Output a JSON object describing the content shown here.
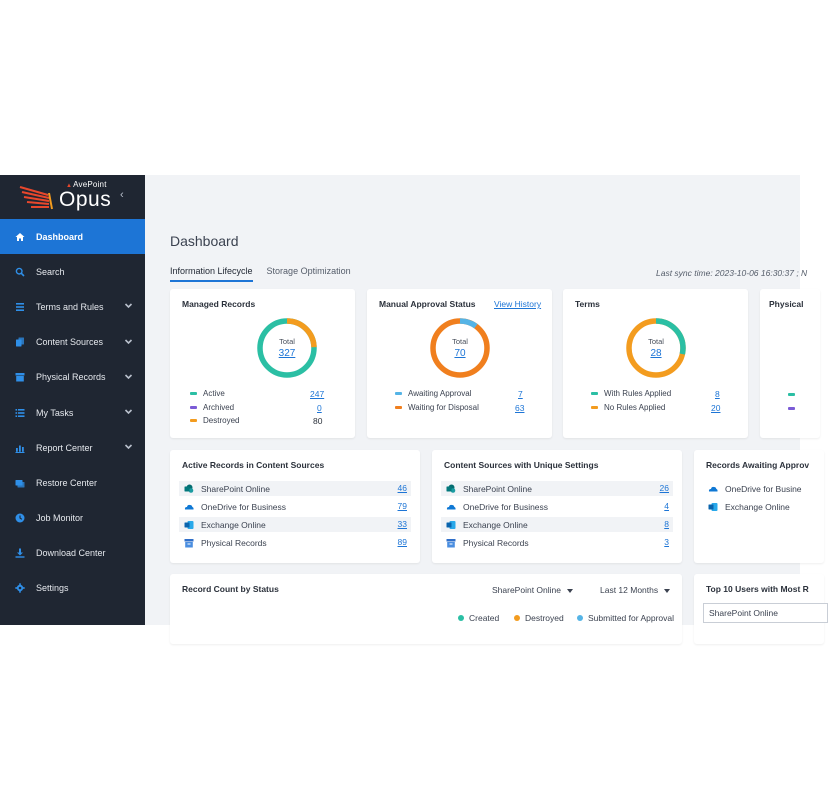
{
  "brand": {
    "company": "AvePoint",
    "product": "Opus"
  },
  "sidebar": {
    "items": [
      {
        "label": "Dashboard",
        "icon": "home-icon",
        "active": true,
        "expandable": false
      },
      {
        "label": "Search",
        "icon": "search-icon",
        "active": false,
        "expandable": false
      },
      {
        "label": "Terms and Rules",
        "icon": "list-icon",
        "active": false,
        "expandable": true
      },
      {
        "label": "Content Sources",
        "icon": "copy-icon",
        "active": false,
        "expandable": true
      },
      {
        "label": "Physical Records",
        "icon": "box-icon",
        "active": false,
        "expandable": true
      },
      {
        "label": "My Tasks",
        "icon": "tasks-icon",
        "active": false,
        "expandable": true
      },
      {
        "label": "Report Center",
        "icon": "chart-icon",
        "active": false,
        "expandable": true
      },
      {
        "label": "Restore Center",
        "icon": "restore-icon",
        "active": false,
        "expandable": false
      },
      {
        "label": "Job Monitor",
        "icon": "clock-icon",
        "active": false,
        "expandable": false
      },
      {
        "label": "Download Center",
        "icon": "download-icon",
        "active": false,
        "expandable": false
      },
      {
        "label": "Settings",
        "icon": "gear-icon",
        "active": false,
        "expandable": false
      }
    ]
  },
  "page": {
    "title": "Dashboard"
  },
  "tabs": [
    {
      "label": "Information Lifecycle",
      "active": true
    },
    {
      "label": "Storage Optimization",
      "active": false
    }
  ],
  "sync_text": "Last sync time: 2023-10-06 16:30:37 ; N",
  "colors": {
    "teal": "#2bbfa4",
    "purple": "#7b5bd6",
    "orange": "#f39c1f",
    "light_blue": "#55b4e6",
    "deep_orange": "#f07f1e",
    "accent": "#1d75d6"
  },
  "managed_records": {
    "title": "Managed Records",
    "total_label": "Total",
    "total": "327",
    "legend": [
      {
        "label": "Active",
        "value": "247",
        "numeric": 247,
        "color": "#2bbfa4",
        "link": true
      },
      {
        "label": "Archived",
        "value": "0",
        "numeric": 0,
        "color": "#7b5bd6",
        "link": true
      },
      {
        "label": "Destroyed",
        "value": "80",
        "numeric": 80,
        "color": "#f39c1f",
        "link": false
      }
    ]
  },
  "manual_approval": {
    "title": "Manual Approval Status",
    "link": "View History",
    "total_label": "Total",
    "total": "70",
    "legend": [
      {
        "label": "Awaiting Approval",
        "value": "7",
        "numeric": 7,
        "color": "#55b4e6",
        "link": true
      },
      {
        "label": "Waiting for Disposal",
        "value": "63",
        "numeric": 63,
        "color": "#f07f1e",
        "link": true
      }
    ]
  },
  "terms": {
    "title": "Terms",
    "total_label": "Total",
    "total": "28",
    "legend": [
      {
        "label": "With Rules Applied",
        "value": "8",
        "numeric": 8,
        "color": "#2bbfa4",
        "link": true
      },
      {
        "label": "No Rules Applied",
        "value": "20",
        "numeric": 20,
        "color": "#f39c1f",
        "link": true
      }
    ]
  },
  "physical_card": {
    "title": "Physical"
  },
  "active_records": {
    "title": "Active Records in Content Sources",
    "rows": [
      {
        "label": "SharePoint Online",
        "value": "46",
        "icon": "sharepoint-icon"
      },
      {
        "label": "OneDrive for Business",
        "value": "79",
        "icon": "onedrive-icon"
      },
      {
        "label": "Exchange Online",
        "value": "33",
        "icon": "exchange-icon"
      },
      {
        "label": "Physical Records",
        "value": "89",
        "icon": "physical-records-icon"
      }
    ]
  },
  "unique_settings": {
    "title": "Content Sources with Unique Settings",
    "rows": [
      {
        "label": "SharePoint Online",
        "value": "26",
        "icon": "sharepoint-icon"
      },
      {
        "label": "OneDrive for Business",
        "value": "4",
        "icon": "onedrive-icon"
      },
      {
        "label": "Exchange Online",
        "value": "8",
        "icon": "exchange-icon"
      },
      {
        "label": "Physical Records",
        "value": "3",
        "icon": "physical-records-icon"
      }
    ]
  },
  "awaiting_card": {
    "title": "Records Awaiting Approv",
    "rows": [
      {
        "label": "OneDrive for Busine",
        "icon": "onedrive-icon"
      },
      {
        "label": "Exchange Online",
        "icon": "exchange-icon"
      }
    ]
  },
  "record_count": {
    "title": "Record Count by Status",
    "source_select": "SharePoint Online",
    "period_select": "Last 12 Months",
    "legend": [
      {
        "label": "Created",
        "color": "#2bbfa4"
      },
      {
        "label": "Destroyed",
        "color": "#f39c1f"
      },
      {
        "label": "Submitted for Approval",
        "color": "#55b4e6"
      }
    ]
  },
  "top_users": {
    "title": "Top 10 Users with Most R",
    "select": "SharePoint Online"
  }
}
